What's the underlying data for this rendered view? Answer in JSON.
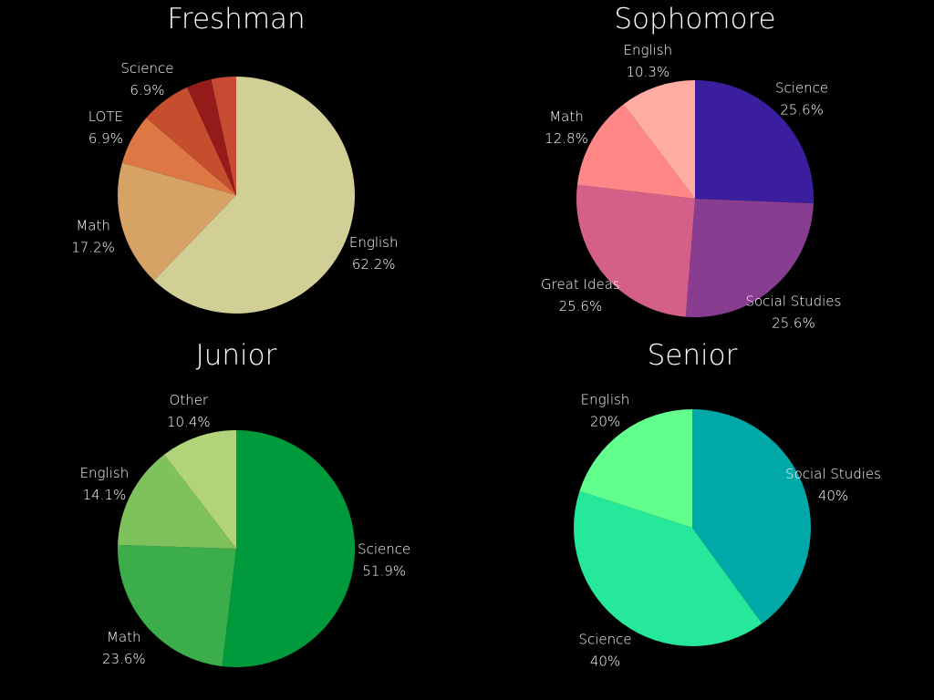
{
  "chart_data": [
    {
      "type": "pie",
      "title": "Freshman",
      "categories": [
        "English",
        "Math",
        "LOTE",
        "Science",
        "",
        ""
      ],
      "values": [
        62.2,
        17.2,
        6.9,
        6.9,
        3.4,
        3.4
      ],
      "value_labels": [
        "62.2%",
        "17.2%",
        "6.9%",
        "6.9%",
        "",
        ""
      ],
      "colors": [
        "#d1ce96",
        "#d6a266",
        "#dd7845",
        "#c44e2e",
        "#951b1b",
        "#c74a33"
      ]
    },
    {
      "type": "pie",
      "title": "Sophomore",
      "categories": [
        "Science",
        "Social Studies",
        "Great Ideas",
        "Math",
        "English"
      ],
      "values": [
        25.6,
        25.6,
        25.6,
        12.8,
        10.3
      ],
      "value_labels": [
        "25.6%",
        "25.6%",
        "25.6%",
        "12.8%",
        "10.3%"
      ],
      "colors": [
        "#3a1e9e",
        "#883d91",
        "#d4608a",
        "#ff8788",
        "#ffaca2"
      ]
    },
    {
      "type": "pie",
      "title": "Junior",
      "categories": [
        "Science",
        "Math",
        "English",
        "Other"
      ],
      "values": [
        51.9,
        23.6,
        14.1,
        10.4
      ],
      "value_labels": [
        "51.9%",
        "23.6%",
        "14.1%",
        "10.4%"
      ],
      "colors": [
        "#009a3c",
        "#3bad4b",
        "#7ec15d",
        "#b1d47a"
      ]
    },
    {
      "type": "pie",
      "title": "Senior",
      "categories": [
        "Social Studies",
        "Science",
        "English"
      ],
      "values": [
        40,
        40,
        20
      ],
      "value_labels": [
        "40%",
        "40%",
        "20%"
      ],
      "colors": [
        "#00a8a8",
        "#26e89b",
        "#62ff8e"
      ]
    }
  ]
}
